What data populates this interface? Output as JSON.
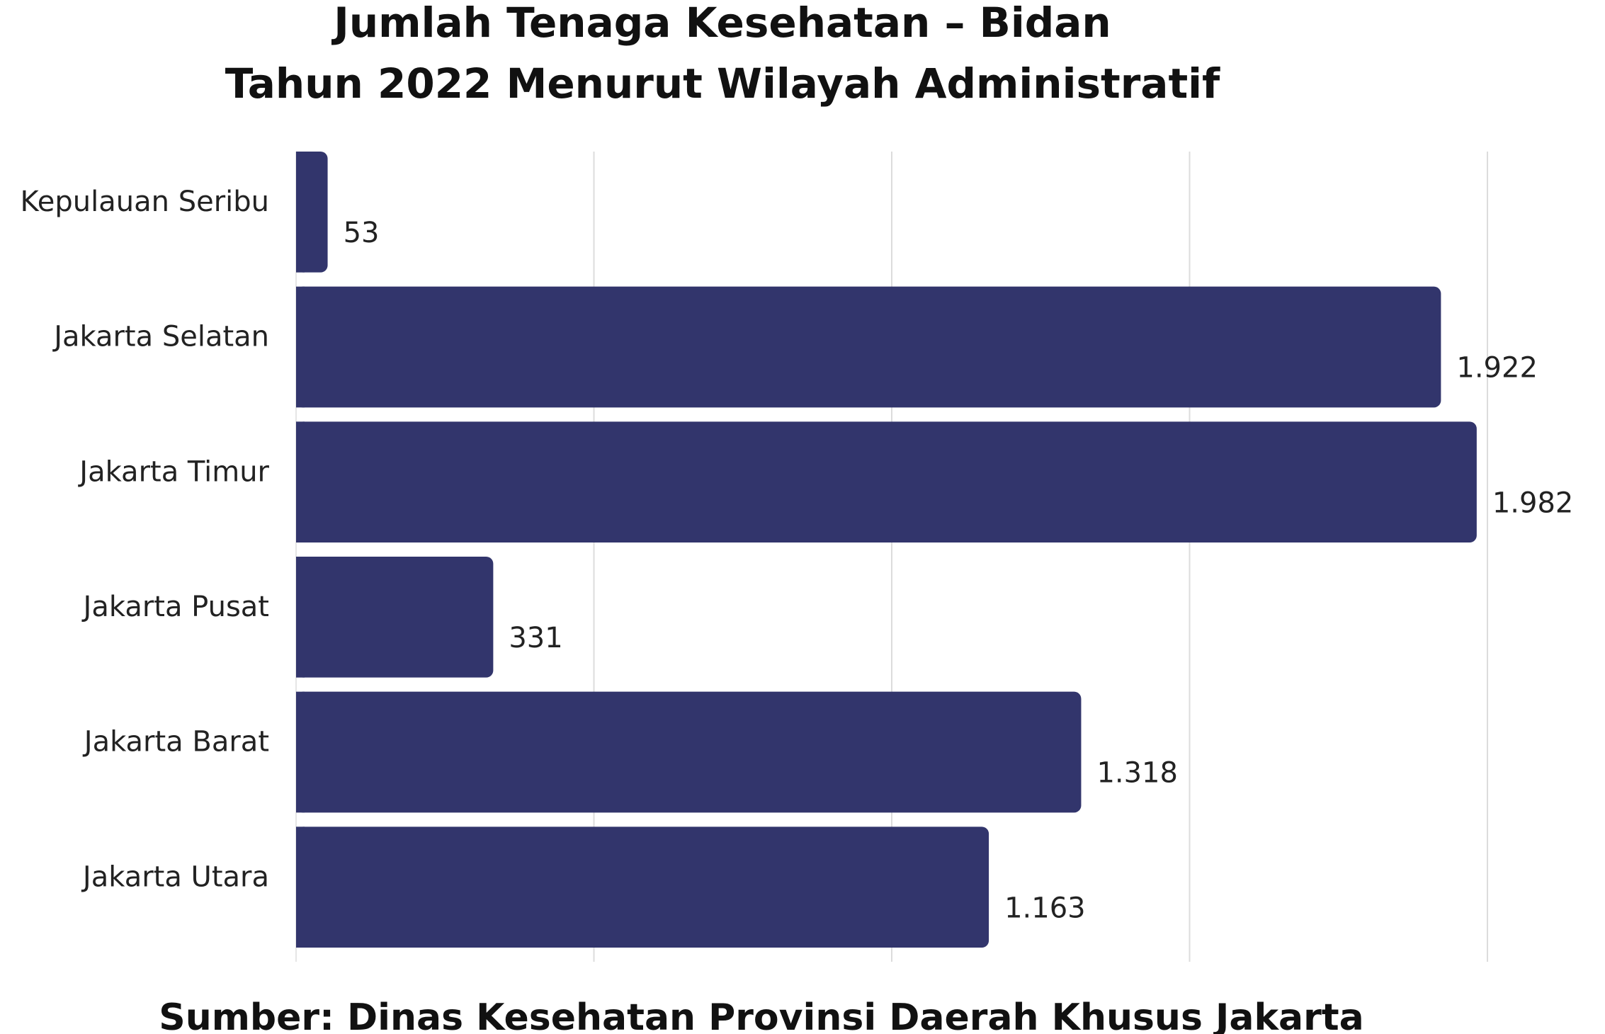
{
  "chart_data": {
    "type": "bar",
    "orientation": "horizontal",
    "title": "Jumlah Tenaga Kesehatan – Bidan",
    "subtitle": "Tahun 2022 Menurut Wilayah Administratif",
    "source": "Sumber: Dinas Kesehatan Provinsi Daerah Khusus Jakarta",
    "categories": [
      "Kepulauan Seribu",
      "Jakarta Selatan",
      "Jakarta Timur",
      "Jakarta Pusat",
      "Jakarta Barat",
      "Jakarta Utara"
    ],
    "values": [
      53,
      1922,
      1982,
      331,
      1318,
      1163
    ],
    "value_labels": [
      "53",
      "1.922",
      "1.982",
      "331",
      "1.318",
      "1.163"
    ],
    "xlim": [
      0,
      2000
    ],
    "xticks": [
      0,
      500,
      1000,
      1500,
      2000
    ],
    "grid": true,
    "legend": "none",
    "bar_color": "#32356c"
  }
}
